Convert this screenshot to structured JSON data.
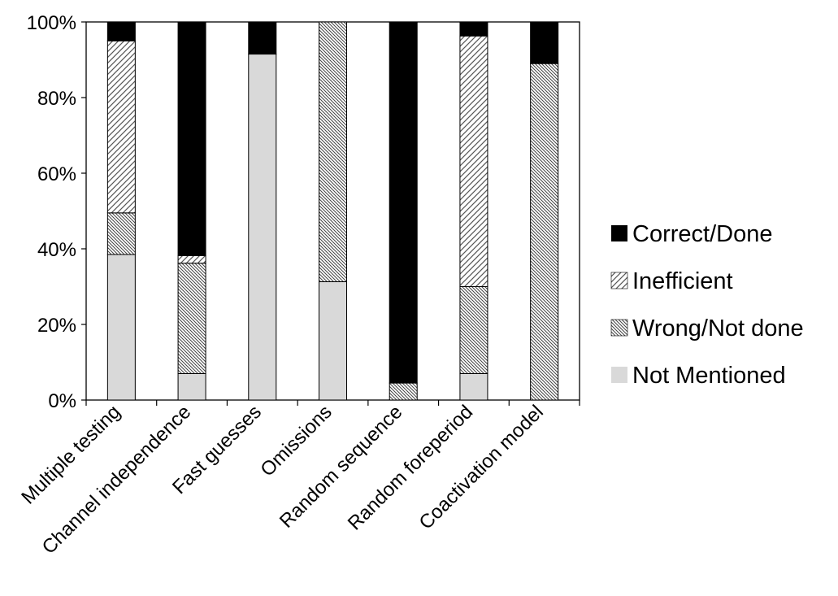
{
  "chart_data": {
    "type": "bar",
    "stacked": true,
    "percent": true,
    "categories": [
      "Multiple testing",
      "Channel independence",
      "Fast guesses",
      "Omissions",
      "Random sequence",
      "Random foreperiod",
      "Coactivation model"
    ],
    "series": [
      {
        "name": "Not Mentioned",
        "values": [
          38.5,
          7,
          91.5,
          31.3,
          0,
          7,
          0
        ],
        "color": "#d9d9d9",
        "pattern": "solid-light"
      },
      {
        "name": "Wrong/Not done",
        "values": [
          11,
          29.2,
          0,
          68.7,
          4.5,
          23,
          89
        ],
        "color": "#ffffff",
        "pattern": "backslash-hatch"
      },
      {
        "name": "Inefficient",
        "values": [
          45.5,
          2,
          0,
          0,
          0,
          66.3,
          0
        ],
        "color": "#ffffff",
        "pattern": "slash-hatch"
      },
      {
        "name": "Correct/Done",
        "values": [
          5,
          61.8,
          8.5,
          0,
          95.5,
          3.7,
          11
        ],
        "color": "#000000",
        "pattern": "solid-black"
      }
    ],
    "legend_order": [
      "Correct/Done",
      "Inefficient",
      "Wrong/Not done",
      "Not Mentioned"
    ],
    "y_ticks": [
      "0%",
      "20%",
      "40%",
      "60%",
      "80%",
      "100%"
    ],
    "ylim": [
      0,
      100
    ],
    "legend_position": "right",
    "grid": false,
    "title": "",
    "xlabel": "",
    "ylabel": ""
  }
}
